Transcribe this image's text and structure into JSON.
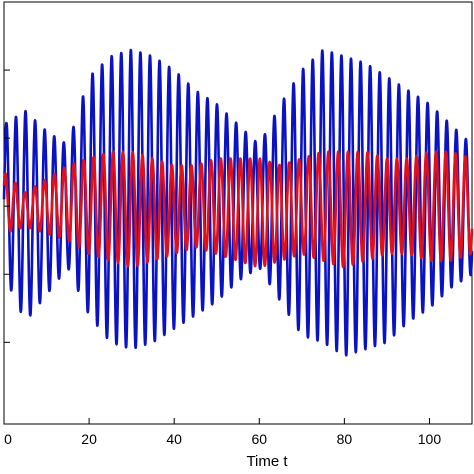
{
  "chart_data": {
    "type": "line",
    "title": "",
    "xlabel": "Time t",
    "ylabel": "",
    "xlim": [
      0,
      110
    ],
    "ylim": [
      -1.6,
      1.5
    ],
    "xticks": [
      0,
      20,
      40,
      60,
      80,
      100
    ],
    "xtick_labels": [
      "0",
      "20",
      "40",
      "60",
      "80",
      "100"
    ],
    "yticks": [
      -1.0,
      -0.5,
      0.0,
      0.5,
      1.0
    ],
    "grid": false,
    "legend": "none",
    "series": [
      {
        "color": "#0a12c4",
        "description_type": "beat",
        "carrier_period": 2.25,
        "phase_shift": 0.0,
        "envelope": {
          "t": [
            0,
            5,
            10,
            15,
            20,
            25,
            30,
            35,
            40,
            45,
            50,
            55,
            60,
            65,
            70,
            75,
            80,
            85,
            90,
            95,
            100,
            105,
            110
          ],
          "low": [
            -0.5,
            -0.85,
            -0.65,
            -0.45,
            -0.8,
            -1.0,
            -1.05,
            -1.0,
            -0.9,
            -0.8,
            -0.7,
            -0.55,
            -0.45,
            -0.7,
            -0.95,
            -1.0,
            -1.1,
            -1.05,
            -1.0,
            -0.85,
            -0.75,
            -0.6,
            -0.5
          ],
          "high": [
            0.6,
            0.7,
            0.55,
            0.45,
            0.95,
            1.1,
            1.15,
            1.1,
            1.0,
            0.85,
            0.75,
            0.6,
            0.45,
            0.75,
            1.0,
            1.15,
            1.1,
            1.05,
            0.95,
            0.85,
            0.75,
            0.6,
            0.45
          ]
        }
      },
      {
        "color": "#e0101c",
        "description_type": "beat",
        "carrier_period": 2.3,
        "phase_shift": 0.6,
        "envelope": {
          "t": [
            0,
            5,
            10,
            15,
            20,
            25,
            30,
            35,
            40,
            45,
            50,
            55,
            60,
            65,
            70,
            75,
            80,
            85,
            90,
            95,
            100,
            105,
            110
          ],
          "low": [
            -0.2,
            -0.15,
            -0.2,
            -0.25,
            -0.35,
            -0.4,
            -0.45,
            -0.4,
            -0.35,
            -0.3,
            -0.35,
            -0.4,
            -0.45,
            -0.4,
            -0.35,
            -0.4,
            -0.45,
            -0.4,
            -0.35,
            -0.35,
            -0.4,
            -0.4,
            -0.35
          ],
          "high": [
            0.25,
            0.1,
            0.2,
            0.3,
            0.35,
            0.4,
            0.4,
            0.35,
            0.3,
            0.3,
            0.35,
            0.35,
            0.35,
            0.3,
            0.35,
            0.4,
            0.4,
            0.4,
            0.35,
            0.35,
            0.4,
            0.4,
            0.35
          ]
        }
      }
    ]
  }
}
